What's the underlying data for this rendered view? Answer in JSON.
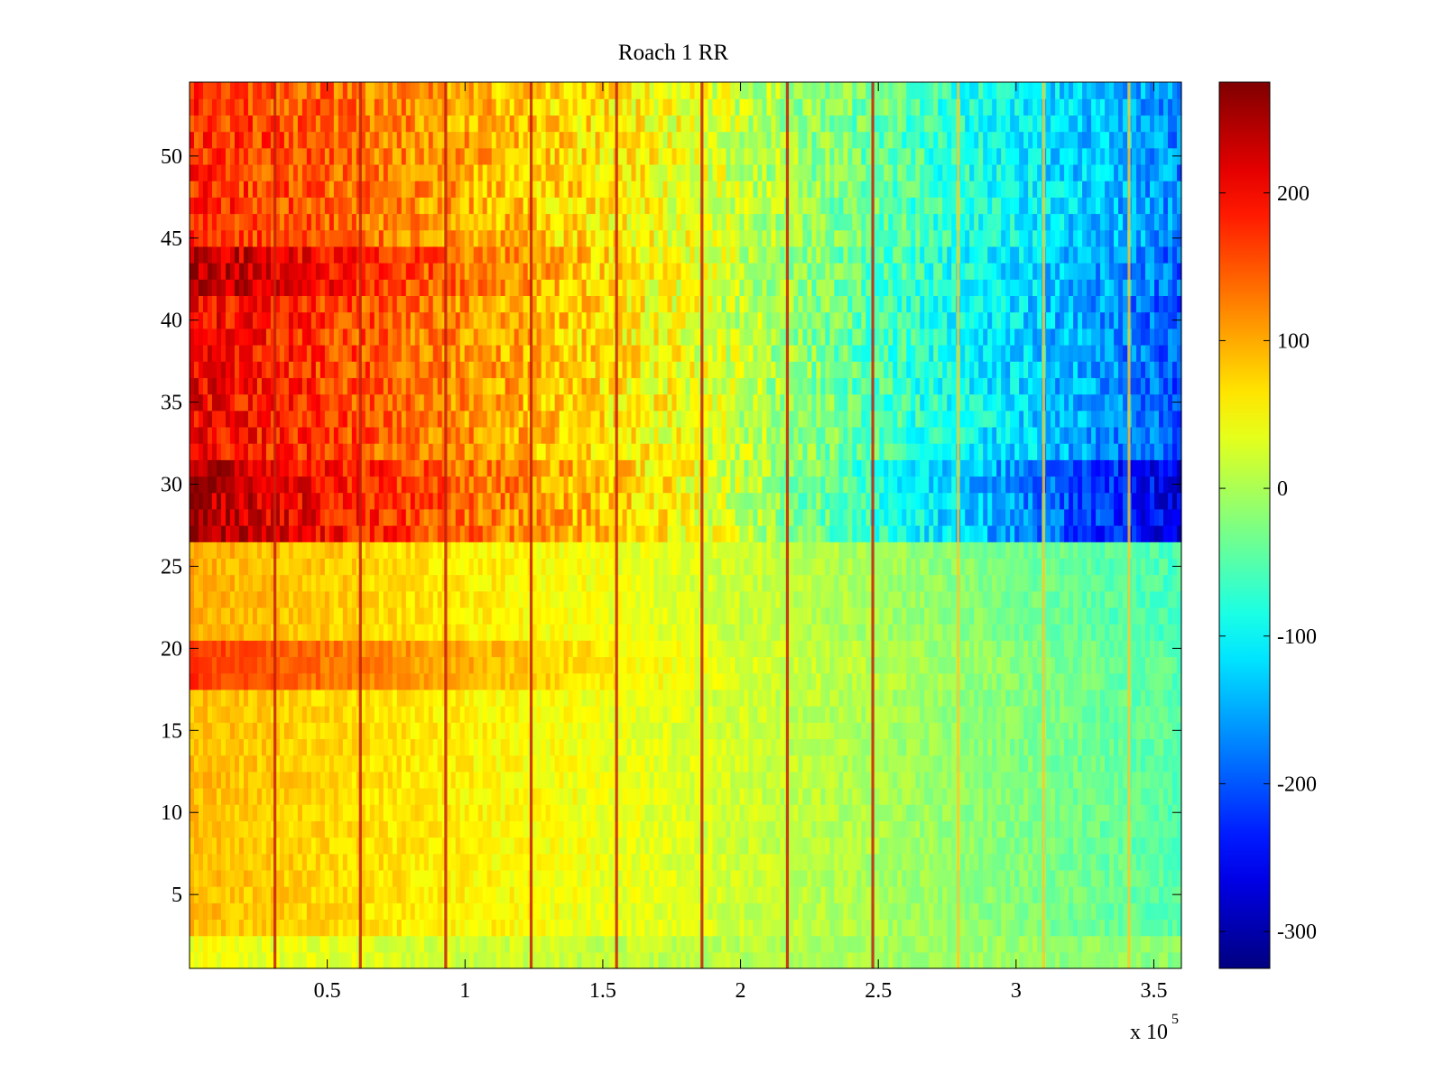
{
  "chart_data": {
    "type": "heatmap",
    "title": "Roach 1 RR",
    "xlabel": "",
    "ylabel": "",
    "x_multiplier_label": {
      "base": "x 10",
      "exponent": "5"
    },
    "xlim": [
      0,
      3.6
    ],
    "ylim": [
      0.5,
      54.5
    ],
    "x_ticks": [
      0.5,
      1,
      1.5,
      2,
      2.5,
      3,
      3.5
    ],
    "x_tick_labels": [
      "0.5",
      "1",
      "1.5",
      "2",
      "2.5",
      "3",
      "3.5"
    ],
    "y_ticks": [
      5,
      10,
      15,
      20,
      25,
      30,
      35,
      40,
      45,
      50
    ],
    "y_tick_labels": [
      "5",
      "10",
      "15",
      "20",
      "25",
      "30",
      "35",
      "40",
      "45",
      "50"
    ],
    "rows": 54,
    "colormap": "jet",
    "colorbar": {
      "clim": [
        -325,
        275
      ],
      "ticks": [
        200,
        100,
        0,
        -100,
        -200,
        -300
      ],
      "tick_labels": [
        "200",
        "100",
        "0",
        "-100",
        "-200",
        "-300"
      ]
    },
    "row_profile_note": "Approximate value per row across x: left / middle / right",
    "row_profiles": {
      "bottom_rows_1_2": [
        40,
        10,
        -20
      ],
      "rows_3_17": [
        90,
        30,
        -50
      ],
      "rows_18_20_band": [
        170,
        40,
        -50
      ],
      "rows_21_26": [
        100,
        30,
        -60
      ],
      "rows_27_31_band": [
        250,
        50,
        -270
      ],
      "rows_32_41": [
        210,
        40,
        -200
      ],
      "rows_42_44_band": [
        250,
        40,
        -190
      ],
      "rows_45_54": [
        180,
        40,
        -170
      ]
    },
    "stripe_x_positions": [
      0.31,
      0.62,
      0.93,
      1.24,
      1.55,
      1.86,
      2.17,
      2.48,
      2.79,
      3.1,
      3.41
    ]
  }
}
